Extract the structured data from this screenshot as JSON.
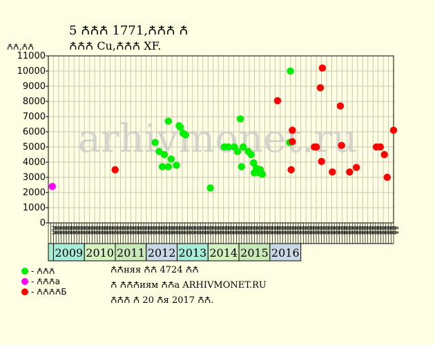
{
  "title_line1": "5 ꙈꙈꙈ 1771,ꙈꙈꙈ Ꙉ",
  "title_line2": "ꙈꙈꙈ Cu,ꙈꙈꙈ XF.",
  "ylabel": "ꙈꙈ,ꙈꙈ",
  "watermark": "arhivmonet.ru",
  "info_lines": [
    "ꙈꙈняя ꙈꙈ 4724 ꙈꙈ",
    "Ꙉ ꙈꙈꙈиям ꙈꙈa ARHIVMONET.RU",
    "ꙈꙈꙈ Ꙉ 20 Ꙉя 2017 ꙈꙈ."
  ],
  "legend": [
    {
      "label": "- ꙈꙈꙈ",
      "color": "#00ee00"
    },
    {
      "label": "- ꙈꙈꙈa",
      "color": "#ff00ff"
    },
    {
      "label": "- ꙈꙈꙈꙈБ",
      "color": "#ff0000"
    }
  ],
  "colors": {
    "background": "#fefee2",
    "grid": "#c8c8b4",
    "year_band_a": "#a6ecd6",
    "year_band_b": "#c8d8e4",
    "year_band_c": "#c8e8b8",
    "year_band_d": "#d4f0c0"
  },
  "chart_data": {
    "type": "scatter",
    "ylim": [
      0,
      11000
    ],
    "y_ticks": [
      0,
      1000,
      2000,
      3000,
      4000,
      5000,
      6000,
      7000,
      8000,
      9000,
      10000,
      11000
    ],
    "x_range": [
      2008.35,
      2016.98
    ],
    "month_labels": [
      "ꙈꙈ",
      "ꙈꙈ",
      "ꙈꙈ",
      "ꙈꙈ",
      "ꙈꙈ",
      "ꙈꙈ",
      "ꙈꙈ",
      "ꙈꙈ",
      "ꙈꙈ",
      "ꙈꙈ",
      "ꙈꙈ",
      "ꙈꙈ",
      "ꙈꙈ",
      "ꙈꙈ",
      "ꙈꙈ",
      "ꙈꙈ",
      "ꙈꙈ",
      "ꙈꙈ",
      "ꙈꙈ",
      "ꙈꙈ",
      "ꙈꙈ",
      "ꙈꙈ",
      "ꙈꙈ",
      "ꙈꙈ",
      "ꙈꙈ",
      "ꙈꙈ",
      "ꙈꙈ",
      "ꙈꙈ",
      "ꙈꙈ",
      "ꙈꙈ",
      "ꙈꙈ",
      "ꙈꙈ",
      "ꙈꙈ",
      "ꙈꙈ",
      "ꙈꙈ",
      "ꙈꙈ",
      "ꙈꙈ",
      "ꙈꙈ",
      "ꙈꙈ",
      "ꙈꙈ",
      "ꙈꙈ",
      "ꙈꙈ",
      "ꙈꙈ",
      "ꙈꙈ",
      "ꙈꙈ",
      "ꙈꙈ",
      "ꙈꙈ",
      "ꙈꙈ",
      "ꙈꙈ",
      "ꙈꙈ",
      "ꙈꙈ",
      "ꙈꙈ",
      "ꙈꙈ",
      "ꙈꙈ",
      "ꙈꙈ",
      "ꙈꙈ",
      "ꙈꙈ",
      "ꙈꙈ",
      "ꙈꙈ",
      "ꙈꙈ",
      "ꙈꙈ",
      "ꙈꙈ",
      "ꙈꙈ",
      "ꙈꙈ",
      "ꙈꙈ",
      "ꙈꙈ",
      "ꙈꙈ",
      "ꙈꙈ",
      "ꙈꙈ",
      "ꙈꙈ",
      "ꙈꙈ",
      "ꙈꙈ",
      "ꙈꙈ",
      "ꙈꙈ",
      "ꙈꙈ",
      "ꙈꙈ",
      "ꙈꙈ",
      "ꙈꙈ",
      "ꙈꙈ",
      "ꙈꙈ",
      "ꙈꙈ",
      "ꙈꙈ",
      "ꙈꙈ",
      "ꙈꙈ",
      "ꙈꙈ",
      "ꙈꙈ",
      "ꙈꙈ",
      "ꙈꙈ",
      "ꙈꙈ",
      "ꙈꙈ",
      "ꙈꙈ",
      "ꙈꙈ",
      "ꙈꙈ",
      "ꙈꙈ",
      "ꙈꙈ",
      "ꙈꙈ",
      "ꙈꙈ",
      "ꙈꙈ",
      "ꙈꙈ",
      "ꙈꙈ",
      "ꙈꙈ",
      "ꙈꙈ",
      "ꙈꙈ",
      "ꙈꙈ",
      "ꙈꙈ",
      "ꙈꙈ",
      "ꙈꙈ",
      "ꙈꙈ",
      "ꙈꙈ",
      "ꙈꙈ",
      "ꙈꙈ",
      "ꙈꙈ",
      "ꙈꙈ",
      "ꙈꙈ",
      "ꙈꙈ",
      "ꙈꙈ",
      "ꙈꙈ",
      "ꙈꙈ",
      "ꙈꙈ",
      "ꙈꙈ",
      "ꙈꙈ",
      "ꙈꙈ",
      "ꙈꙈ",
      "ꙈꙈ",
      "ꙈꙈ",
      "ꙈꙈ",
      "ꙈꙈ",
      "ꙈꙈ",
      "ꙈꙈ",
      "ꙈꙈ",
      "ꙈꙈ",
      "ꙈꙈ",
      "ꙈꙈ",
      "ꙈꙈ"
    ],
    "years": [
      "2009",
      "2010",
      "2011",
      "2012",
      "2013",
      "2014",
      "2015",
      "2016"
    ],
    "series": [
      {
        "name": "- ꙈꙈꙈ",
        "color": "#00ee00",
        "points": [
          {
            "x": 2011.02,
            "y": 5300
          },
          {
            "x": 2011.12,
            "y": 4700
          },
          {
            "x": 2011.2,
            "y": 3700
          },
          {
            "x": 2011.25,
            "y": 4500
          },
          {
            "x": 2011.35,
            "y": 6700
          },
          {
            "x": 2011.35,
            "y": 3700
          },
          {
            "x": 2011.42,
            "y": 4200
          },
          {
            "x": 2011.55,
            "y": 3800
          },
          {
            "x": 2011.62,
            "y": 6400
          },
          {
            "x": 2011.65,
            "y": 6300
          },
          {
            "x": 2011.72,
            "y": 5900
          },
          {
            "x": 2011.78,
            "y": 5800
          },
          {
            "x": 2012.4,
            "y": 2300
          },
          {
            "x": 2012.75,
            "y": 5000
          },
          {
            "x": 2012.85,
            "y": 5000
          },
          {
            "x": 2013.0,
            "y": 5000
          },
          {
            "x": 2013.08,
            "y": 4700
          },
          {
            "x": 2013.15,
            "y": 6850
          },
          {
            "x": 2013.18,
            "y": 3700
          },
          {
            "x": 2013.22,
            "y": 5000
          },
          {
            "x": 2013.35,
            "y": 4700
          },
          {
            "x": 2013.42,
            "y": 4500
          },
          {
            "x": 2013.48,
            "y": 3950
          },
          {
            "x": 2013.5,
            "y": 3300
          },
          {
            "x": 2013.55,
            "y": 3600
          },
          {
            "x": 2013.62,
            "y": 3300
          },
          {
            "x": 2013.65,
            "y": 3500
          },
          {
            "x": 2013.7,
            "y": 3200
          },
          {
            "x": 2014.38,
            "y": 5300
          },
          {
            "x": 2014.4,
            "y": 10000
          }
        ]
      },
      {
        "name": "- ꙈꙈꙈa",
        "color": "#ff00ff",
        "points": [
          {
            "x": 2008.45,
            "y": 2400
          }
        ]
      },
      {
        "name": "- ꙈꙈꙈꙈБ",
        "color": "#ff0000",
        "points": [
          {
            "x": 2010.02,
            "y": 3500
          },
          {
            "x": 2014.08,
            "y": 8050
          },
          {
            "x": 2014.42,
            "y": 3500
          },
          {
            "x": 2014.45,
            "y": 5350
          },
          {
            "x": 2014.45,
            "y": 6100
          },
          {
            "x": 2015.0,
            "y": 5000
          },
          {
            "x": 2015.05,
            "y": 5000
          },
          {
            "x": 2015.15,
            "y": 8900
          },
          {
            "x": 2015.18,
            "y": 4050
          },
          {
            "x": 2015.2,
            "y": 10200
          },
          {
            "x": 2015.45,
            "y": 3350
          },
          {
            "x": 2015.65,
            "y": 7700
          },
          {
            "x": 2015.68,
            "y": 5100
          },
          {
            "x": 2015.88,
            "y": 3350
          },
          {
            "x": 2016.05,
            "y": 3650
          },
          {
            "x": 2016.55,
            "y": 5000
          },
          {
            "x": 2016.65,
            "y": 5000
          },
          {
            "x": 2016.75,
            "y": 4500
          },
          {
            "x": 2016.82,
            "y": 3000
          },
          {
            "x": 2016.98,
            "y": 6100
          }
        ]
      }
    ]
  }
}
